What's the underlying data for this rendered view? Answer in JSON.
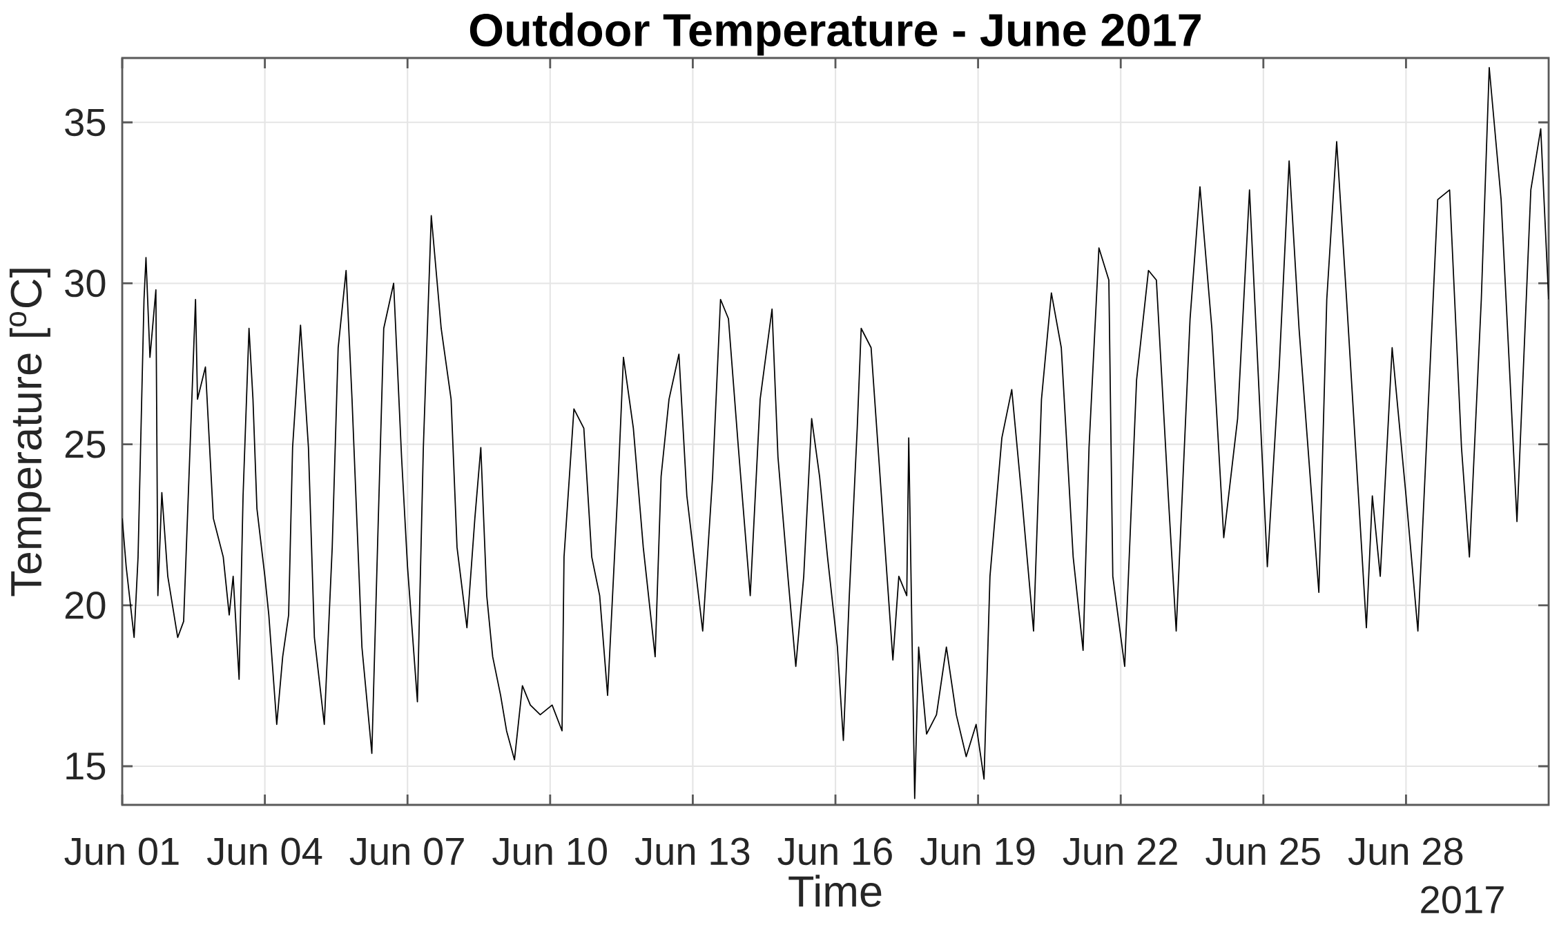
{
  "chart_data": {
    "type": "line",
    "title": "Outdoor Temperature - June 2017",
    "xlabel": "Time",
    "ylabel": "Temperature [$^{o}$C]",
    "annotations": [
      "2017"
    ],
    "xlim": [
      "2017-06-01",
      "2017-07-01"
    ],
    "xticks": [
      {
        "value": "2017-06-01",
        "label": "Jun 01"
      },
      {
        "value": "2017-06-04",
        "label": "Jun 04"
      },
      {
        "value": "2017-06-07",
        "label": "Jun 07"
      },
      {
        "value": "2017-06-10",
        "label": "Jun 10"
      },
      {
        "value": "2017-06-13",
        "label": "Jun 13"
      },
      {
        "value": "2017-06-16",
        "label": "Jun 16"
      },
      {
        "value": "2017-06-19",
        "label": "Jun 19"
      },
      {
        "value": "2017-06-22",
        "label": "Jun 22"
      },
      {
        "value": "2017-06-25",
        "label": "Jun 25"
      },
      {
        "value": "2017-06-28",
        "label": "Jun 28"
      }
    ],
    "ylim": [
      13.8,
      37
    ],
    "yticks": [
      15,
      20,
      25,
      30,
      35
    ],
    "grid": true,
    "series": [
      {
        "color": "#000000",
        "x": [
          "2017-06-01T00:00",
          "2017-06-01T02:00",
          "2017-06-01T06:00",
          "2017-06-01T08:00",
          "2017-06-01T11:00",
          "2017-06-01T12:00",
          "2017-06-01T14:00",
          "2017-06-01T17:00",
          "2017-06-01T18:00",
          "2017-06-01T20:00",
          "2017-06-01T23:00",
          "2017-06-02T04:00",
          "2017-06-02T07:00",
          "2017-06-02T13:00",
          "2017-06-02T14:00",
          "2017-06-02T18:00",
          "2017-06-02T22:00",
          "2017-06-03T03:00",
          "2017-06-03T06:00",
          "2017-06-03T08:00",
          "2017-06-03T11:00",
          "2017-06-03T13:00",
          "2017-06-03T16:00",
          "2017-06-03T18:00",
          "2017-06-03T20:00",
          "2017-06-04T00:00",
          "2017-06-04T02:00",
          "2017-06-04T06:00",
          "2017-06-04T09:00",
          "2017-06-04T12:00",
          "2017-06-04T14:00",
          "2017-06-04T18:00",
          "2017-06-04T22:00",
          "2017-06-05T01:00",
          "2017-06-05T06:00",
          "2017-06-05T10:00",
          "2017-06-05T13:00",
          "2017-06-05T17:00",
          "2017-06-05T20:00",
          "2017-06-06T01:00",
          "2017-06-06T06:00",
          "2017-06-06T09:00",
          "2017-06-06T12:00",
          "2017-06-06T17:00",
          "2017-06-06T21:00",
          "2017-06-07T00:00",
          "2017-06-07T05:00",
          "2017-06-07T08:00",
          "2017-06-07T12:00",
          "2017-06-07T17:00",
          "2017-06-07T22:00",
          "2017-06-08T01:00",
          "2017-06-08T06:00",
          "2017-06-08T10:00",
          "2017-06-08T13:00",
          "2017-06-08T16:00",
          "2017-06-08T19:00",
          "2017-06-08T23:00",
          "2017-06-09T02:00",
          "2017-06-09T06:00",
          "2017-06-09T10:00",
          "2017-06-09T14:00",
          "2017-06-09T19:00",
          "2017-06-10T01:00",
          "2017-06-10T06:00",
          "2017-06-10T07:00",
          "2017-06-10T12:00",
          "2017-06-10T17:00",
          "2017-06-10T21:00",
          "2017-06-11T01:00",
          "2017-06-11T05:00",
          "2017-06-11T10:00",
          "2017-06-11T13:00",
          "2017-06-11T18:00",
          "2017-06-11T23:00",
          "2017-06-12T05:00",
          "2017-06-12T08:00",
          "2017-06-12T12:00",
          "2017-06-12T17:00",
          "2017-06-12T21:00",
          "2017-06-13T05:00",
          "2017-06-13T10:00",
          "2017-06-13T14:00",
          "2017-06-13T18:00",
          "2017-06-13T23:00",
          "2017-06-14T05:00",
          "2017-06-14T10:00",
          "2017-06-14T16:00",
          "2017-06-14T19:00",
          "2017-06-15T00:00",
          "2017-06-15T04:00",
          "2017-06-15T08:00",
          "2017-06-15T12:00",
          "2017-06-15T16:00",
          "2017-06-15T20:00",
          "2017-06-16T01:00",
          "2017-06-16T04:00",
          "2017-06-16T07:00",
          "2017-06-16T11:00",
          "2017-06-16T13:00",
          "2017-06-16T18:00",
          "2017-06-17T00:00",
          "2017-06-17T05:00",
          "2017-06-17T08:00",
          "2017-06-17T12:00",
          "2017-06-17T13:00",
          "2017-06-17T16:00",
          "2017-06-17T18:00",
          "2017-06-17T22:00",
          "2017-06-18T03:00",
          "2017-06-18T08:00",
          "2017-06-18T13:00",
          "2017-06-18T18:00",
          "2017-06-18T23:00",
          "2017-06-19T03:00",
          "2017-06-19T06:00",
          "2017-06-19T12:00",
          "2017-06-19T17:00",
          "2017-06-19T22:00",
          "2017-06-20T04:00",
          "2017-06-20T08:00",
          "2017-06-20T13:00",
          "2017-06-20T18:00",
          "2017-06-21T00:00",
          "2017-06-21T05:00",
          "2017-06-21T08:00",
          "2017-06-21T13:00",
          "2017-06-21T18:00",
          "2017-06-21T20:00",
          "2017-06-22T02:00",
          "2017-06-22T08:00",
          "2017-06-22T14:00",
          "2017-06-22T18:00",
          "2017-06-23T00:00",
          "2017-06-23T04:00",
          "2017-06-23T11:00",
          "2017-06-23T16:00",
          "2017-06-23T22:00",
          "2017-06-24T04:00",
          "2017-06-24T11:00",
          "2017-06-24T17:00",
          "2017-06-24T22:00",
          "2017-06-25T02:00",
          "2017-06-25T08:00",
          "2017-06-25T13:00",
          "2017-06-25T18:00",
          "2017-06-26T04:00",
          "2017-06-26T08:00",
          "2017-06-26T13:00",
          "2017-06-26T18:00",
          "2017-06-27T00:00",
          "2017-06-27T04:00",
          "2017-06-27T07:00",
          "2017-06-27T11:00",
          "2017-06-27T17:00",
          "2017-06-28T00:00",
          "2017-06-28T06:00",
          "2017-06-28T16:00",
          "2017-06-28T22:00",
          "2017-06-29T04:00",
          "2017-06-29T08:00",
          "2017-06-29T14:00",
          "2017-06-29T18:00",
          "2017-06-30T00:00",
          "2017-06-30T05:00",
          "2017-06-30T08:00",
          "2017-06-30T15:00",
          "2017-06-30T20:00",
          "2017-07-01T00:00"
        ],
        "values": [
          22.7,
          21.2,
          19.0,
          21.5,
          29.5,
          30.8,
          27.7,
          29.8,
          20.3,
          23.5,
          20.9,
          19.0,
          19.5,
          29.5,
          26.4,
          27.4,
          22.7,
          21.5,
          19.7,
          20.9,
          17.7,
          23.4,
          28.6,
          26.4,
          23.0,
          20.9,
          19.7,
          16.3,
          18.4,
          19.7,
          24.9,
          28.7,
          24.9,
          19.0,
          16.3,
          21.8,
          28.0,
          30.4,
          26.4,
          18.7,
          15.4,
          22.1,
          28.6,
          30.0,
          24.6,
          21.2,
          17.0,
          24.9,
          32.1,
          28.6,
          26.4,
          21.8,
          19.3,
          22.7,
          24.9,
          20.3,
          18.4,
          17.2,
          16.1,
          15.2,
          17.5,
          16.9,
          16.6,
          16.9,
          16.1,
          21.5,
          26.1,
          25.5,
          21.5,
          20.3,
          17.2,
          23.4,
          27.7,
          25.5,
          21.8,
          18.4,
          24.0,
          26.4,
          27.8,
          23.4,
          19.2,
          24.0,
          29.5,
          28.9,
          24.9,
          20.3,
          26.4,
          29.2,
          24.6,
          20.9,
          18.1,
          20.9,
          25.8,
          24.0,
          21.5,
          18.7,
          15.8,
          20.3,
          25.5,
          28.6,
          28.0,
          22.7,
          18.3,
          20.9,
          20.3,
          25.2,
          14.0,
          18.7,
          16.0,
          16.6,
          18.7,
          16.6,
          15.3,
          16.3,
          14.6,
          20.9,
          25.2,
          26.7,
          23.4,
          19.2,
          26.4,
          29.7,
          28.0,
          21.5,
          18.6,
          24.9,
          31.1,
          30.1,
          20.9,
          18.1,
          27.0,
          30.4,
          30.1,
          23.4,
          19.2,
          28.9,
          33.0,
          28.6,
          22.1,
          25.8,
          32.9,
          26.4,
          21.2,
          27.4,
          33.8,
          28.6,
          20.4,
          29.5,
          34.4,
          29.5,
          23.4,
          19.3,
          23.4,
          20.9,
          28.0,
          23.4,
          19.2,
          32.6,
          32.9,
          24.9,
          21.5,
          29.5,
          36.7,
          32.6,
          26.4,
          22.6,
          32.9,
          34.8,
          29.5
        ]
      }
    ]
  }
}
